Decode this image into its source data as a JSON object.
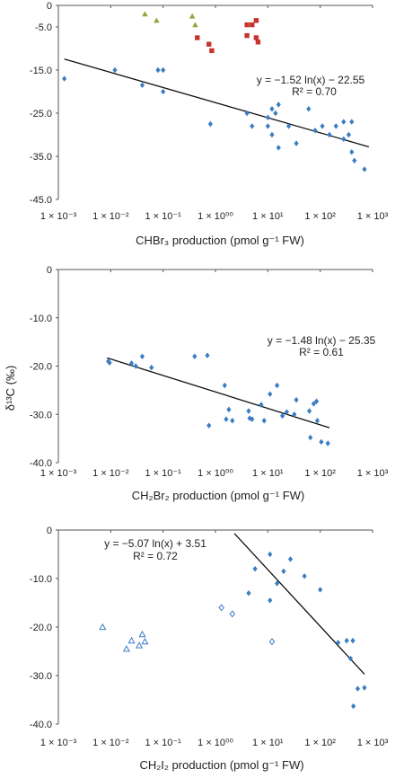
{
  "y_axis_label": "δ¹³C (‰)",
  "chart_data": [
    {
      "type": "scatter",
      "xlabel": "CHBr₃ production (pmol g⁻¹ FW)",
      "xscale": "log",
      "xlim": [
        0.001,
        1000
      ],
      "ylim": [
        -45,
        0
      ],
      "x_tick_labels": [
        "1 × 10⁻³",
        "1 × 10⁻²",
        "1 × 10⁻¹",
        "1 × 10⁰⁰",
        "1 × 10¹",
        "1 × 10²",
        "1 × 10³"
      ],
      "y_tick_labels": [
        "0",
        "-5.0",
        "-15.0",
        "-25.0",
        "-35.0",
        "-45.0"
      ],
      "equation": "y = −1.52 ln(x) − 22.55",
      "r2": "R² = 0.70",
      "colors": {
        "diamond": "#3b7dc4",
        "square": "#c8342c",
        "triangle": "#8aa838",
        "trend": "#111111"
      },
      "trendline": {
        "x_from": 0.0013,
        "x_to": 850
      },
      "series": [
        {
          "marker": "diamond",
          "points": [
            [
              0.0013,
              -17.0
            ],
            [
              0.012,
              -15.0
            ],
            [
              0.04,
              -18.5
            ],
            [
              0.08,
              -15.0
            ],
            [
              0.1,
              -15.0
            ],
            [
              0.1,
              -20.0
            ],
            [
              0.8,
              -27.5
            ],
            [
              4.0,
              -25.0
            ],
            [
              5.0,
              -28.0
            ],
            [
              10.0,
              -26.0
            ],
            [
              10.0,
              -28.0
            ],
            [
              12.0,
              -24.0
            ],
            [
              12.0,
              -30.0
            ],
            [
              14.0,
              -25.0
            ],
            [
              16.0,
              -23.0
            ],
            [
              16.0,
              -33.0
            ],
            [
              25.0,
              -28.0
            ],
            [
              35.0,
              -32.0
            ],
            [
              60.0,
              -24.0
            ],
            [
              80.0,
              -29.0
            ],
            [
              110.0,
              -28.0
            ],
            [
              150.0,
              -30.0
            ],
            [
              200.0,
              -28.0
            ],
            [
              280.0,
              -27.0
            ],
            [
              280.0,
              -31.0
            ],
            [
              350.0,
              -30.0
            ],
            [
              400.0,
              -27.0
            ],
            [
              400.0,
              -34.0
            ],
            [
              450.0,
              -36.0
            ],
            [
              700.0,
              -38.0
            ]
          ]
        },
        {
          "marker": "square",
          "points": [
            [
              0.45,
              -7.5
            ],
            [
              0.75,
              -9.0
            ],
            [
              0.85,
              -10.5
            ],
            [
              4.0,
              -4.5
            ],
            [
              4.0,
              -7.0
            ],
            [
              5.0,
              -4.5
            ],
            [
              6.0,
              -3.5
            ],
            [
              6.0,
              -7.5
            ],
            [
              6.5,
              -8.5
            ]
          ]
        },
        {
          "marker": "triangle",
          "points": [
            [
              0.045,
              -2.0
            ],
            [
              0.075,
              -3.5
            ],
            [
              0.36,
              -2.5
            ],
            [
              0.41,
              -4.5
            ]
          ]
        }
      ]
    },
    {
      "type": "scatter",
      "xlabel": "CH₂Br₂ production (pmol g⁻¹ FW)",
      "xscale": "log",
      "xlim": [
        0.001,
        1000
      ],
      "ylim": [
        -40,
        0
      ],
      "x_tick_labels": [
        "1 × 10⁻³",
        "1 × 10⁻²",
        "1 × 10⁻¹",
        "1 × 10⁰⁰",
        "1 × 10¹",
        "1 × 10²",
        "1 × 10³"
      ],
      "y_tick_labels": [
        "0",
        "-10.0",
        "-20.0",
        "-30.0",
        "-40.0"
      ],
      "equation": "y = −1.48 ln(x) − 25.35",
      "r2": "R² = 0.61",
      "colors": {
        "diamond": "#3b7dc4",
        "trend": "#111111"
      },
      "trendline": {
        "x_from": 0.0085,
        "x_to": 150
      },
      "series": [
        {
          "marker": "diamond",
          "points": [
            [
              0.009,
              -19.0
            ],
            [
              0.0095,
              -19.3
            ],
            [
              0.025,
              -19.4
            ],
            [
              0.03,
              -20.0
            ],
            [
              0.04,
              -18.0
            ],
            [
              0.06,
              -20.3
            ],
            [
              0.4,
              -18.0
            ],
            [
              0.7,
              -17.8
            ],
            [
              0.75,
              -32.3
            ],
            [
              1.5,
              -24.0
            ],
            [
              1.6,
              -31.0
            ],
            [
              1.8,
              -29.0
            ],
            [
              2.1,
              -31.3
            ],
            [
              4.3,
              -29.3
            ],
            [
              4.5,
              -30.8
            ],
            [
              5.0,
              -31.0
            ],
            [
              7.5,
              -28.0
            ],
            [
              8.5,
              -31.3
            ],
            [
              11.0,
              -25.8
            ],
            [
              15.0,
              -24.0
            ],
            [
              19.0,
              -30.3
            ],
            [
              23.0,
              -29.5
            ],
            [
              32.0,
              -30.0
            ],
            [
              35.0,
              -27.0
            ],
            [
              62.0,
              -29.3
            ],
            [
              65.0,
              -34.8
            ],
            [
              75.0,
              -27.8
            ],
            [
              85.0,
              -27.3
            ],
            [
              88.0,
              -31.3
            ],
            [
              105.0,
              -35.7
            ],
            [
              140.0,
              -36.0
            ]
          ]
        }
      ]
    },
    {
      "type": "scatter",
      "xlabel": "CH₂I₂ production (pmol g⁻¹ FW)",
      "xscale": "log",
      "xlim": [
        0.001,
        1000
      ],
      "ylim": [
        -40,
        0
      ],
      "x_tick_labels": [
        "1 × 10⁻³",
        "1 × 10⁻²",
        "1 × 10⁻¹",
        "1 × 10⁰⁰",
        "1 × 10¹",
        "1 × 10²",
        "1 × 10³"
      ],
      "y_tick_labels": [
        "0",
        "-10.0",
        "-20.0",
        "-30.0",
        "-40.0"
      ],
      "equation": "y = −5.07 ln(x) + 3.51",
      "r2": "R² = 0.72",
      "colors": {
        "diamond": "#3b7dc4",
        "open_diamond": "#3b7dc4",
        "open_triangle": "#3b7dc4",
        "trend": "#111111"
      },
      "trendline": {
        "x_from": 2.3,
        "x_to": 700
      },
      "series": [
        {
          "marker": "diamond",
          "points": [
            [
              4.3,
              -13.0
            ],
            [
              5.7,
              -8.0
            ],
            [
              11.0,
              -5.0
            ],
            [
              11.0,
              -14.5
            ],
            [
              15.0,
              -11.0
            ],
            [
              20.0,
              -8.5
            ],
            [
              27.0,
              -6.0
            ],
            [
              50.0,
              -9.5
            ],
            [
              100.0,
              -12.3
            ],
            [
              220.0,
              -23.2
            ],
            [
              320.0,
              -22.8
            ],
            [
              380.0,
              -26.5
            ],
            [
              420.0,
              -22.8
            ],
            [
              430.0,
              -36.3
            ],
            [
              520.0,
              -32.7
            ],
            [
              700.0,
              -32.5
            ]
          ]
        },
        {
          "marker": "open_diamond",
          "points": [
            [
              1.3,
              -16.0
            ],
            [
              2.1,
              -17.3
            ],
            [
              12.0,
              -23.0
            ]
          ]
        },
        {
          "marker": "open_triangle",
          "points": [
            [
              0.007,
              -20.0
            ],
            [
              0.02,
              -24.5
            ],
            [
              0.025,
              -22.8
            ],
            [
              0.035,
              -23.8
            ],
            [
              0.04,
              -21.5
            ],
            [
              0.045,
              -23.0
            ]
          ]
        }
      ]
    }
  ]
}
